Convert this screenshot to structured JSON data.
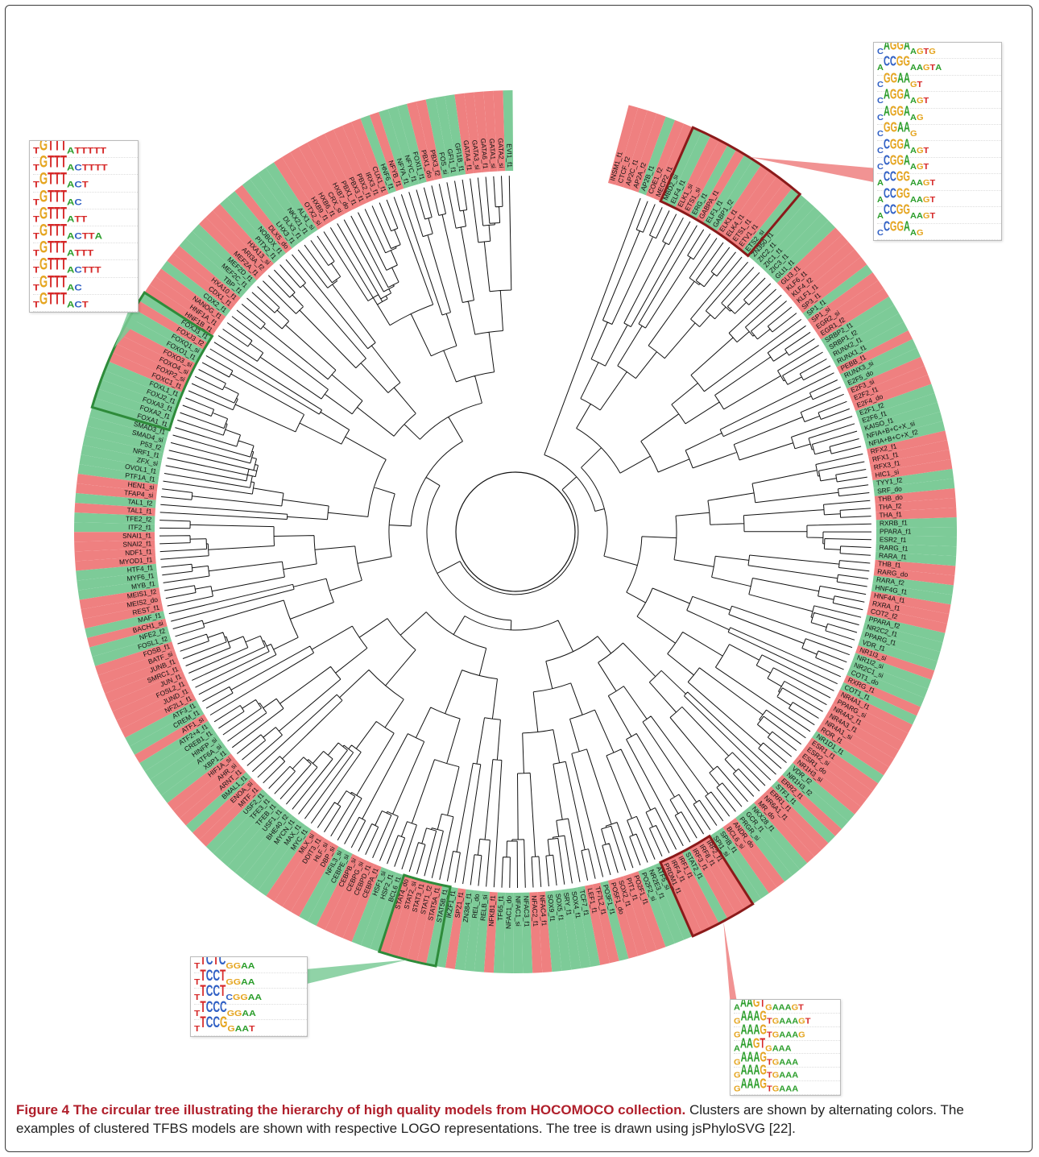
{
  "caption": {
    "bold": "Figure 4 The circular tree illustrating the hierarchy of high quality models from HOCOMOCO collection.",
    "rest": " Clusters are shown by alternating colors. The examples of clustered TFBS models are shown with respective LOGO representations. The tree is drawn using jsPhyloSVG [22]."
  },
  "colors": {
    "green": "#7dcb98",
    "red": "#ef8080",
    "cluster_green_outline": "#2e8b3a",
    "cluster_red_outline": "#8b1a1a",
    "branch": "#111111"
  },
  "labels": [
    "EVI1_f1",
    "GATA2_si",
    "GATA1_si",
    "GATA6_f1",
    "GATA3_si",
    "GATA4_f1",
    "GFI1B_f1",
    "GFI1_f1",
    "FOS_si",
    "PBX3_f2",
    "PBX1_do",
    "FOXI1_f1",
    "NFYC_f1",
    "NFYA_f1",
    "NFYB_f1",
    "HNF6_f1",
    "CUX1_f1",
    "IRX3_f1",
    "PBX2_f1",
    "PBX3_f1",
    "PBX1_f1",
    "HXB7_do",
    "CRX_si",
    "HXB6_f1",
    "HXB9_f1",
    "OTX2_si",
    "ALX1_si",
    "NKX21_f1",
    "DLX3_f1",
    "LHX3_f1",
    "DLX5_do",
    "NOBOX_f1",
    "PITX2_f1",
    "HXA13_si",
    "ARI3A_f2",
    "MEF2A_f1",
    "MEF2D_f1",
    "MEF2C_f1",
    "TBP_f1",
    "HXA10_f1",
    "CDX1_f1",
    "CDX2_f1",
    "NANOG_f1",
    "HNF1A_f1",
    "HNF1B_f1",
    "FOXJ3_f1",
    "FOXJ3_f2",
    "FOXQ1_si",
    "FOXO1_f1",
    "FOXO3_si",
    "FOXO4_si",
    "FOXP2_si",
    "FOXC1_f1",
    "FOXL1_f1",
    "FOXJ2_f1",
    "FOXA3_f1",
    "FOXA2_f1",
    "FOXA1_f1",
    "SMAD3_f1",
    "SMAD4_si",
    "P53_f2",
    "NRF1_f1",
    "ZFX_si",
    "OVOL1_f1",
    "PTF1A_f1",
    "HEN1_si",
    "TFAP4_si",
    "TAL1_f2",
    "TAL1_f1",
    "TFE2_f2",
    "ITF2_f1",
    "SNAI1_f1",
    "SNAI2_f1",
    "NDF1_f1",
    "MYOD1_f1",
    "HTF4_f1",
    "MYF6_f1",
    "MYB_f1",
    "MEIS1_f2",
    "MEIS2_do",
    "REST_f1",
    "MAF_f1",
    "BACH1_si",
    "NFE2_f2",
    "FOSL1_f2",
    "FOSB_f1",
    "BATF_si",
    "JUNB_f1",
    "SMRC1_f1",
    "JUN_f1",
    "FOSL2_f1",
    "JUND_f1",
    "NF2L1_f1",
    "ATF3_f1",
    "CREM_f1",
    "ATF1_si",
    "ATF2+4_f1",
    "CREB1_f1",
    "HINFP_si",
    "ATF6A_si",
    "XBP1_f1",
    "HIF1A_si",
    "AHR_si",
    "ARNT_f1",
    "BMAL1_f1",
    "ENOA_si",
    "MITF_f1",
    "USF2_f1",
    "TFE3_f1",
    "TFEB_f1",
    "USF1_f1",
    "BHE40_f2",
    "MYCN_f1",
    "MAX_f1",
    "MYC_f1",
    "MLX_si",
    "DDIT3_f1",
    "HLF_si",
    "DBP_si",
    "NFIL3_si",
    "CEBPE_si",
    "CEBPB_si",
    "CEBPG_si",
    "CEBPD_f1",
    "CEBPA_f1",
    "HSF1_si",
    "HSF2_f1",
    "BCL6_f1",
    "STAT4_do",
    "STAT2_si",
    "STAT3_f1",
    "STAT1_f2",
    "STAT5A_f1",
    "STAT5B_f1",
    "IKZF1_f1",
    "SPZ1_f1",
    "ZN384_f1",
    "REL_do",
    "RELB_si",
    "NFKB1_f1",
    "TF65_f1",
    "NFAC1_do",
    "NFAC1_si",
    "NFAC3_f1",
    "NFAC2_f1",
    "NFAC4_f1",
    "SOX9_f1",
    "SOX5_f1",
    "SRY_f1",
    "SOX4_f1",
    "TCF7_f1",
    "LEF1_f1",
    "TF7L2_f1",
    "PO3F1_f1",
    "PO5F1_do",
    "SOX2_f1",
    "PIT1_f1",
    "PO2F1_f1",
    "PO2F2_si",
    "NR2E3_f1",
    "ATF5_si",
    "PRDM1_f1",
    "IRF4_f1",
    "IRF1_f1",
    "STAT2_f1",
    "IRF3_f1",
    "IRF8_f1",
    "IRF2_f1",
    "SPI1_si",
    "SPIB_f1",
    "BCL6_si",
    "ANDR_do",
    "PRGR_si",
    "GCR_f1",
    "NKX28_f1",
    "MR_do",
    "NR6A1_f1",
    "ERR1_f1",
    "STF1_f1",
    "ERR2_f1",
    "NR1H3_f2",
    "VDR_f2",
    "NR1H3_si",
    "ESR1_do",
    "ESR2_si",
    "ESR1_f1",
    "NR1D1_f1",
    "ROR_f1",
    "NR4A1_si",
    "NR4A3_f1",
    "NR4A2_f1",
    "PPARG_si",
    "NR4A1_f1",
    "COT1_f1",
    "RXRG_f1",
    "COT1_do",
    "NR2C1_si",
    "NR1I2_si",
    "NR1I3_si",
    "VDR_f1",
    "PPARG_f1",
    "NR2C2_f1",
    "PPARA_f2",
    "COT2_f2",
    "RXRA_f1",
    "HNF4A_f1",
    "HNF4G_f1",
    "RARA_f2",
    "RARG_do",
    "THB_f1",
    "RARA_f1",
    "RARG_f1",
    "ESR2_f1",
    "PPARA_f1",
    "RXRB_f1",
    "THA_f1",
    "THA_f2",
    "THB_do",
    "SRF_do",
    "TYY1_f2",
    "HIC1_si",
    "RFX3_f1",
    "RFX1_f1",
    "RFX2_f1",
    "NFIA+B+C+X_f2",
    "NFIA+B+C+X_si",
    "KAISO_f1",
    "E2F6_f1",
    "E2F1_f2",
    "E2F4_do",
    "E2F2_f1",
    "E2F3_si",
    "E2F5_do",
    "RUNX3_si",
    "PEBB_f1",
    "RUNX1_f1",
    "RUNX2_f1",
    "SRBP1_f2",
    "SRBP2_f1",
    "EGR1_f2",
    "EGR2_si",
    "SP1_si",
    "SP1_f1",
    "SP3_f1",
    "KLF1_f1",
    "KLF4_f2",
    "KLF6_f1",
    "GLI3_f1",
    "GLI1_f1",
    "ZIC3_f1",
    "ZIC1_f1",
    "ZIC2_f1",
    "ZN350_f1",
    "ETS2_si",
    "ETV1_f1",
    "ETS1_f1",
    "ELK4_f1",
    "ELK1_f1",
    "GABP1_f2",
    "ELF1_f1",
    "GABPA_f1",
    "ERG_f1",
    "ETS1_si",
    "ELK1_si",
    "ELF4_f1",
    "MBD2_si",
    "MECP2_f1",
    "COE1_f2",
    "AP2B_f1",
    "AP2A_f2",
    "AP2C_f1",
    "CTCF_f2",
    "INSM1_f1"
  ],
  "logos": {
    "fox": [
      "TGTTTATTTTT",
      "TGTTTACTTTT",
      "TGTTTACT",
      "TGTTTAC",
      "TGTTTATT",
      "TGTTTACTTA",
      "TGTTTATTT",
      "TGTTTACTTT",
      "TGTTTAC",
      "TGTTTACT"
    ],
    "ets": [
      "CAGGAAGTG",
      "ACCGGAAGTA",
      "CGGAAGT",
      "CAGGAAGT",
      "CAGGAAG",
      "CGGAAG",
      "CCGGAAGT",
      "CCGGAAGT",
      "ACCGGAAGT",
      "ACCGGAAGT",
      "ACCGGAAGT",
      "CCGGAAG"
    ],
    "stat": [
      "TTCTCGGAA",
      "TTCCTGGAA",
      "TTCCTCGGAA",
      "TTCCCGGAA",
      "TTCCGGAAT"
    ],
    "irf": [
      "AAAGTGAAAGT",
      "GAAAGTGAAAGT",
      "GAAAGTGAAAG",
      "AAAGTGAAA",
      "GAAAGTGAAA",
      "GAAAGTGAAA",
      "GAAAGTGAAA"
    ]
  }
}
